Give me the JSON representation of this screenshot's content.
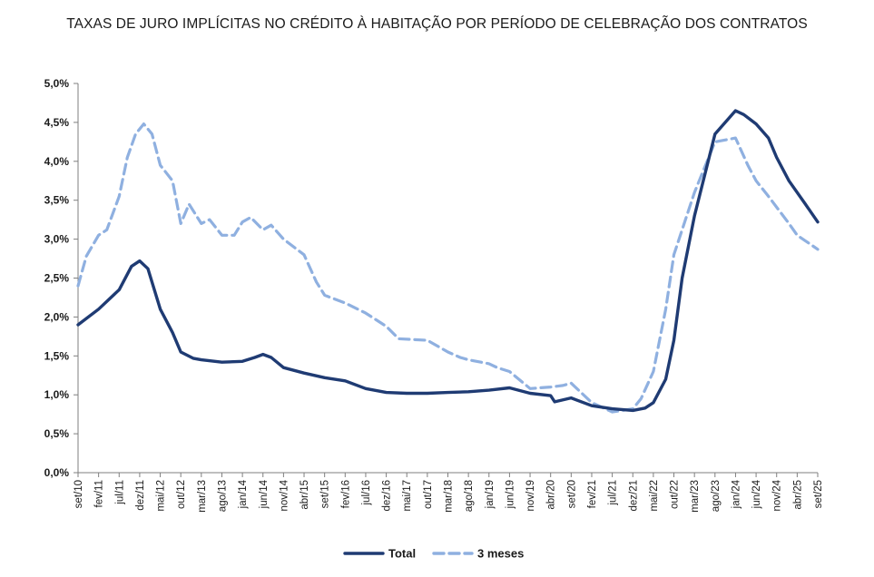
{
  "chart_data": {
    "type": "line",
    "title": "TAXAS DE JURO IMPLÍCITAS NO CRÉDITO À HABITAÇÃO POR PERÍODO DE CELEBRAÇÃO DOS CONTRATOS",
    "xlabel": "",
    "ylabel": "",
    "ylim": [
      0,
      5
    ],
    "y_ticks": [
      "0,0%",
      "0,5%",
      "1,0%",
      "1,5%",
      "2,0%",
      "2,5%",
      "3,0%",
      "3,5%",
      "4,0%",
      "4,5%",
      "5,0%"
    ],
    "x_tick_labels": [
      "set/10",
      "fev/11",
      "jul/11",
      "dez/11",
      "mai/12",
      "out/12",
      "mar/13",
      "ago/13",
      "jan/14",
      "jun/14",
      "nov/14",
      "abr/15",
      "set/15",
      "fev/16",
      "jul/16",
      "dez/16",
      "mai/17",
      "out/17",
      "mar/18",
      "ago/18",
      "jan/19",
      "jun/19",
      "nov/19",
      "abr/20",
      "set/20",
      "fev/21",
      "jul/21",
      "dez/21",
      "mai/22",
      "out/22",
      "mar/23",
      "ago/23",
      "jan/24",
      "jun/24",
      "nov/24",
      "abr/25",
      "set/25"
    ],
    "x_start": "set/10",
    "x_end": "set/25",
    "grid": false,
    "legend_position": "bottom",
    "series": [
      {
        "name": "Total",
        "color": "#1f3b73",
        "style": "solid",
        "points": [
          [
            "set/10",
            1.9
          ],
          [
            "fev/11",
            2.1
          ],
          [
            "jul/11",
            2.35
          ],
          [
            "out/11",
            2.65
          ],
          [
            "dez/11",
            2.72
          ],
          [
            "fev/12",
            2.62
          ],
          [
            "mai/12",
            2.1
          ],
          [
            "ago/12",
            1.8
          ],
          [
            "out/12",
            1.55
          ],
          [
            "jan/13",
            1.47
          ],
          [
            "mar/13",
            1.45
          ],
          [
            "ago/13",
            1.42
          ],
          [
            "jan/14",
            1.43
          ],
          [
            "abr/14",
            1.48
          ],
          [
            "jun/14",
            1.52
          ],
          [
            "ago/14",
            1.48
          ],
          [
            "nov/14",
            1.35
          ],
          [
            "abr/15",
            1.28
          ],
          [
            "set/15",
            1.22
          ],
          [
            "fev/16",
            1.18
          ],
          [
            "jul/16",
            1.08
          ],
          [
            "dez/16",
            1.03
          ],
          [
            "mai/17",
            1.02
          ],
          [
            "out/17",
            1.02
          ],
          [
            "mar/18",
            1.03
          ],
          [
            "ago/18",
            1.04
          ],
          [
            "jan/19",
            1.06
          ],
          [
            "jun/19",
            1.09
          ],
          [
            "nov/19",
            1.02
          ],
          [
            "abr/20",
            0.99
          ],
          [
            "mai/20",
            0.91
          ],
          [
            "set/20",
            0.96
          ],
          [
            "fev/21",
            0.86
          ],
          [
            "jul/21",
            0.82
          ],
          [
            "dez/21",
            0.8
          ],
          [
            "mar/22",
            0.83
          ],
          [
            "mai/22",
            0.9
          ],
          [
            "ago/22",
            1.2
          ],
          [
            "out/22",
            1.7
          ],
          [
            "dez/22",
            2.5
          ],
          [
            "mar/23",
            3.3
          ],
          [
            "ago/23",
            4.35
          ],
          [
            "jan/24",
            4.65
          ],
          [
            "mar/24",
            4.6
          ],
          [
            "jun/24",
            4.48
          ],
          [
            "set/24",
            4.3
          ],
          [
            "nov/24",
            4.05
          ],
          [
            "fev/25",
            3.75
          ],
          [
            "jun/25",
            3.45
          ],
          [
            "set/25",
            3.22
          ]
        ]
      },
      {
        "name": "3 meses",
        "color": "#8fb0e0",
        "style": "dashed",
        "points": [
          [
            "set/10",
            2.4
          ],
          [
            "nov/10",
            2.78
          ],
          [
            "fev/11",
            3.05
          ],
          [
            "abr/11",
            3.12
          ],
          [
            "jul/11",
            3.55
          ],
          [
            "set/11",
            4.05
          ],
          [
            "nov/11",
            4.35
          ],
          [
            "jan/12",
            4.48
          ],
          [
            "mar/12",
            4.35
          ],
          [
            "mai/12",
            3.95
          ],
          [
            "ago/12",
            3.75
          ],
          [
            "out/12",
            3.2
          ],
          [
            "dez/12",
            3.45
          ],
          [
            "mar/13",
            3.2
          ],
          [
            "mai/13",
            3.25
          ],
          [
            "ago/13",
            3.05
          ],
          [
            "nov/13",
            3.05
          ],
          [
            "jan/14",
            3.22
          ],
          [
            "mar/14",
            3.28
          ],
          [
            "jun/14",
            3.12
          ],
          [
            "ago/14",
            3.18
          ],
          [
            "nov/14",
            3.0
          ],
          [
            "abr/15",
            2.8
          ],
          [
            "jul/15",
            2.45
          ],
          [
            "set/15",
            2.28
          ],
          [
            "fev/16",
            2.18
          ],
          [
            "jul/16",
            2.05
          ],
          [
            "dez/16",
            1.88
          ],
          [
            "mar/17",
            1.72
          ],
          [
            "out/17",
            1.7
          ],
          [
            "mar/18",
            1.55
          ],
          [
            "jun/18",
            1.48
          ],
          [
            "ago/18",
            1.45
          ],
          [
            "jan/19",
            1.4
          ],
          [
            "mar/19",
            1.35
          ],
          [
            "jun/19",
            1.3
          ],
          [
            "nov/19",
            1.08
          ],
          [
            "abr/20",
            1.1
          ],
          [
            "jul/20",
            1.12
          ],
          [
            "set/20",
            1.15
          ],
          [
            "fev/21",
            0.9
          ],
          [
            "jul/21",
            0.78
          ],
          [
            "dez/21",
            0.82
          ],
          [
            "fev/22",
            0.95
          ],
          [
            "mai/22",
            1.3
          ],
          [
            "ago/22",
            2.1
          ],
          [
            "out/22",
            2.8
          ],
          [
            "mar/23",
            3.6
          ],
          [
            "ago/23",
            4.25
          ],
          [
            "jan/24",
            4.3
          ],
          [
            "abr/24",
            3.95
          ],
          [
            "jun/24",
            3.75
          ],
          [
            "set/24",
            3.55
          ],
          [
            "fev/25",
            3.2
          ],
          [
            "abr/25",
            3.05
          ],
          [
            "set/25",
            2.87
          ]
        ]
      }
    ]
  }
}
